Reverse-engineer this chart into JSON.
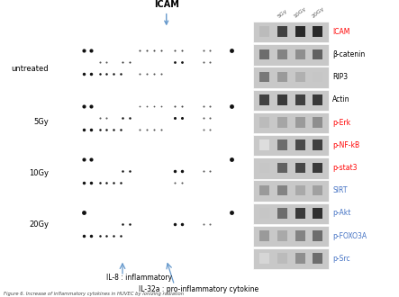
{
  "title": "Increase of inflammatory cytokine in HUVEC by ionizing radiation",
  "left_panel": {
    "background_color": "#c8c8c8",
    "row_labels": [
      "untreated",
      "5Gy",
      "10Gy",
      "20Gy"
    ],
    "top_label": "ICAM",
    "bottom_label1": "IL-8 : inflammatory",
    "bottom_label2": "IL-32a : pro-inflammatory cytokine"
  },
  "right_panel": {
    "header_labels": [
      "5Gy",
      "10Gy",
      "20Gy"
    ],
    "protein_labels": [
      "ICAM",
      "β-catenin",
      "RIP3",
      "Actin",
      "p-Erk",
      "p-NF-kB",
      "p-stat3",
      "SIRT",
      "p-Akt",
      "p-FOXO3A",
      "p-Src"
    ],
    "label_colors": [
      "#ff0000",
      "#000000",
      "#000000",
      "#000000",
      "#ff0000",
      "#ff0000",
      "#ff0000",
      "#4472c4",
      "#4472c4",
      "#4472c4",
      "#4472c4"
    ],
    "band_bg": "#d0d0d0",
    "band_bg_dark": "#b0b0b0"
  },
  "figure_bg": "#ffffff",
  "caption": "Figure 6. Increase of inflammatory cytokines in HUVEC by ionizing radiation"
}
